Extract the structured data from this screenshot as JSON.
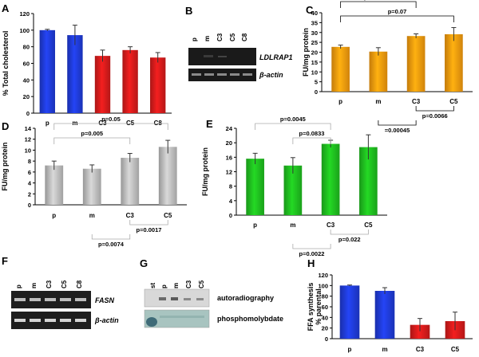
{
  "panel_letters": [
    "A",
    "B",
    "C",
    "D",
    "E",
    "F",
    "G",
    "H"
  ],
  "chart_data": [
    {
      "panel": "A",
      "type": "bar",
      "categories": [
        "p",
        "m",
        "C3",
        "C5",
        "C8"
      ],
      "values": [
        100,
        94,
        69,
        76,
        67
      ],
      "errors": [
        1,
        12,
        7,
        4,
        6
      ],
      "colors": [
        "#1f3bd6",
        "#1f3bd6",
        "#d41b1b",
        "#d41b1b",
        "#d41b1b"
      ],
      "ylabel": "% Total cholesterol",
      "ylim": [
        0,
        120
      ],
      "yticks": [
        0,
        20,
        40,
        60,
        80,
        100,
        120
      ],
      "significance": []
    },
    {
      "panel": "C",
      "type": "bar",
      "categories": [
        "p",
        "m",
        "C3",
        "C5"
      ],
      "values": [
        22.7,
        20.3,
        28.2,
        29.1
      ],
      "errors": [
        0.9,
        2.0,
        1.1,
        3.4
      ],
      "colors": [
        "#f59a0e",
        "#f59a0e",
        "#f59a0e",
        "#f59a0e"
      ],
      "ylabel": "FU/mg protein",
      "ylim": [
        0,
        40
      ],
      "yticks": [
        0,
        5,
        10,
        15,
        20,
        25,
        30,
        35,
        40
      ],
      "significance": [
        {
          "label": "p=0.00295",
          "from": 0,
          "to": 2,
          "side": "top"
        },
        {
          "label": "p=0.07",
          "from": 0,
          "to": 3,
          "side": "top"
        },
        {
          "label": "p=0.0066",
          "from": 2,
          "to": 3,
          "side": "bottom"
        },
        {
          "label": "=0.00045",
          "from": 1,
          "to": 2,
          "side": "bottom"
        }
      ]
    },
    {
      "panel": "D",
      "type": "bar",
      "categories": [
        "p",
        "m",
        "C3",
        "C5"
      ],
      "values": [
        7.2,
        6.6,
        8.6,
        10.6
      ],
      "errors": [
        0.8,
        0.7,
        0.8,
        1.2
      ],
      "colors": [
        "#bdbdbd",
        "#bdbdbd",
        "#bdbdbd",
        "#bdbdbd"
      ],
      "ylabel": "FU/mg protein",
      "ylim": [
        0,
        14
      ],
      "yticks": [
        0,
        2,
        4,
        6,
        8,
        10,
        12,
        14
      ],
      "significance": [
        {
          "label": "p=0.05",
          "from": 0,
          "to": 3,
          "side": "top"
        },
        {
          "label": "p=0.005",
          "from": 0,
          "to": 2,
          "side": "top"
        },
        {
          "label": "p=0.0017",
          "from": 2,
          "to": 3,
          "side": "bottom"
        },
        {
          "label": "p=0.0074",
          "from": 1,
          "to": 2,
          "side": "bottom"
        }
      ]
    },
    {
      "panel": "E",
      "type": "bar",
      "categories": [
        "p",
        "m",
        "C3",
        "C5"
      ],
      "values": [
        15.6,
        13.7,
        19.7,
        18.8
      ],
      "errors": [
        1.5,
        2.2,
        1.0,
        3.4
      ],
      "colors": [
        "#1fbd1f",
        "#1fbd1f",
        "#1fbd1f",
        "#1fbd1f"
      ],
      "ylabel": "FU/mg protein",
      "ylim": [
        0,
        24
      ],
      "yticks": [
        0,
        4,
        8,
        12,
        16,
        20,
        24
      ],
      "significance": [
        {
          "label": "p=0.0045",
          "from": 0,
          "to": 2,
          "side": "top"
        },
        {
          "label": "p=0.0833",
          "from": 1,
          "to": 2,
          "side": "top"
        },
        {
          "label": "p=0.022",
          "from": 2,
          "to": 3,
          "side": "bottom"
        },
        {
          "label": "p=0.0022",
          "from": 1,
          "to": 2,
          "side": "bottom"
        }
      ]
    },
    {
      "panel": "H",
      "type": "bar",
      "categories": [
        "p",
        "m",
        "C3",
        "C5"
      ],
      "values": [
        100,
        90,
        26,
        33
      ],
      "errors": [
        1,
        6,
        12,
        17
      ],
      "colors": [
        "#1f3bd6",
        "#1f3bd6",
        "#d41b1b",
        "#d41b1b"
      ],
      "ylabel": "FFA synthesis\n% parental",
      "ylim": [
        0,
        120
      ],
      "yticks": [
        0,
        20,
        40,
        60,
        80,
        100,
        120
      ],
      "significance": []
    }
  ],
  "gel_B": {
    "lanes": [
      "p",
      "m",
      "C3",
      "C5",
      "C8"
    ],
    "rows": [
      "LDLRAP1",
      "β-actin"
    ]
  },
  "gel_F": {
    "lanes": [
      "p",
      "m",
      "C3",
      "C5",
      "C8"
    ],
    "rows": [
      "FASN",
      "β-actin"
    ]
  },
  "tlc_G": {
    "lanes": [
      "st",
      "p",
      "m",
      "C3",
      "C5"
    ],
    "rows": [
      "autoradiography",
      "phosphomolybdate"
    ]
  }
}
